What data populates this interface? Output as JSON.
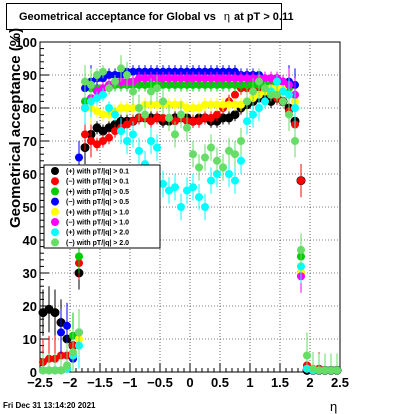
{
  "title": {
    "prefix": "Geometrical acceptance for Global vs",
    "eta": "η",
    "suffix": "at pT > 0.11"
  },
  "timestamp": "Fri Dec 31 13:14:20 2021",
  "chart_data": {
    "type": "scatter",
    "xlabel": "η",
    "ylabel": "Geometrical acceptance (%)",
    "xlim": [
      -2.5,
      2.5
    ],
    "ylim": [
      0,
      100
    ],
    "xticks": [
      "−2.5",
      "−2",
      "−1.5",
      "−1",
      "−0.5",
      "0",
      "0.5",
      "1",
      "1.5",
      "2",
      "2.5"
    ],
    "yticks": [
      "0",
      "10",
      "20",
      "30",
      "40",
      "50",
      "60",
      "70",
      "80",
      "90",
      "100"
    ],
    "grid": true,
    "legend_position": "left-middle",
    "series": [
      {
        "name": "(+) with pT/|q| > 0.1",
        "color": "#000000",
        "x": [
          -2.45,
          -2.35,
          -2.25,
          -2.15,
          -2.05,
          -1.95,
          -1.85,
          -1.75,
          -1.65,
          -1.55,
          -1.45,
          -1.35,
          -1.25,
          -1.15,
          -1.05,
          -0.95,
          -0.85,
          -0.75,
          -0.65,
          -0.55,
          -0.45,
          -0.35,
          -0.25,
          -0.15,
          -0.05,
          0.05,
          0.15,
          0.25,
          0.35,
          0.45,
          0.55,
          0.65,
          0.75,
          0.85,
          0.95,
          1.05,
          1.15,
          1.25,
          1.35,
          1.45,
          1.55,
          1.65,
          1.75,
          1.85,
          1.95,
          2.05,
          2.15,
          2.25,
          2.35,
          2.45
        ],
        "y": [
          18,
          19,
          18,
          15,
          10,
          8,
          30,
          68,
          72,
          74,
          73,
          74,
          75,
          76,
          76,
          76,
          77,
          77,
          77,
          77,
          76,
          76,
          77,
          77,
          77,
          76,
          77,
          77,
          76,
          76,
          77,
          77,
          78,
          80,
          81,
          82,
          83,
          83,
          82,
          83,
          82,
          80,
          76,
          58,
          0.5,
          0.5,
          0.5,
          0.5,
          0.5,
          0.5
        ]
      },
      {
        "name": "(−) with pT/|q| > 0.1",
        "color": "#ff0000",
        "x": [
          -2.45,
          -2.35,
          -2.25,
          -2.15,
          -2.05,
          -1.95,
          -1.85,
          -1.75,
          -1.65,
          -1.55,
          -1.45,
          -1.35,
          -1.25,
          -1.15,
          -1.05,
          -0.95,
          -0.85,
          -0.75,
          -0.65,
          -0.55,
          -0.45,
          -0.35,
          -0.25,
          -0.15,
          -0.05,
          0.05,
          0.15,
          0.25,
          0.35,
          0.45,
          0.55,
          0.65,
          0.75,
          0.85,
          0.95,
          1.05,
          1.15,
          1.25,
          1.35,
          1.45,
          1.55,
          1.65,
          1.75,
          1.85,
          1.95,
          2.05,
          2.15,
          2.25,
          2.35,
          2.45
        ],
        "y": [
          3,
          4,
          4,
          5,
          5,
          8,
          33,
          72,
          70,
          69,
          70,
          71,
          73,
          74,
          75,
          76,
          77,
          77,
          76,
          77,
          77,
          77,
          76,
          77,
          76,
          76,
          76,
          77,
          77,
          78,
          80,
          82,
          84,
          86,
          86,
          87,
          86,
          85,
          84,
          83,
          82,
          79,
          75,
          58,
          2,
          1,
          1,
          0.5,
          0.5,
          0.5
        ]
      },
      {
        "name": "(+) with pT/|q| > 0.5",
        "color": "#00cc00",
        "x": [
          -2.45,
          -2.35,
          -2.25,
          -2.15,
          -2.05,
          -1.95,
          -1.85,
          -1.75,
          -1.65,
          -1.55,
          -1.45,
          -1.35,
          -1.25,
          -1.15,
          -1.05,
          -0.95,
          -0.85,
          -0.75,
          -0.65,
          -0.55,
          -0.45,
          -0.35,
          -0.25,
          -0.15,
          -0.05,
          0.05,
          0.15,
          0.25,
          0.35,
          0.45,
          0.55,
          0.65,
          0.75,
          0.85,
          0.95,
          1.05,
          1.15,
          1.25,
          1.35,
          1.45,
          1.55,
          1.65,
          1.75,
          1.85,
          1.95,
          2.05,
          2.15,
          2.25,
          2.35,
          2.45
        ],
        "y": [
          0.5,
          0.5,
          0.5,
          0.5,
          1,
          11,
          35,
          82,
          86,
          86,
          86,
          87,
          87,
          87,
          87,
          87,
          87,
          87,
          87,
          87,
          87,
          87,
          87,
          87,
          87,
          87,
          87,
          87,
          87,
          87,
          87,
          87,
          87,
          87,
          87,
          87,
          87,
          87,
          87,
          86,
          86,
          86,
          84,
          35,
          1,
          0.5,
          0.5,
          0.5,
          0.5,
          0.5
        ]
      },
      {
        "name": "(−) with pT/|q| > 0.5",
        "color": "#0000ff",
        "x": [
          -2.45,
          -2.35,
          -2.25,
          -2.15,
          -2.05,
          -1.95,
          -1.85,
          -1.75,
          -1.65,
          -1.55,
          -1.45,
          -1.35,
          -1.25,
          -1.15,
          -1.05,
          -0.95,
          -0.85,
          -0.75,
          -0.65,
          -0.55,
          -0.45,
          -0.35,
          -0.25,
          -0.15,
          -0.05,
          0.05,
          0.15,
          0.25,
          0.35,
          0.45,
          0.55,
          0.65,
          0.75,
          0.85,
          0.95,
          1.05,
          1.15,
          1.25,
          1.35,
          1.45,
          1.55,
          1.65,
          1.75,
          1.85,
          1.95,
          2.05,
          2.15,
          2.25,
          2.35,
          2.45
        ],
        "y": [
          0.5,
          0.5,
          0.5,
          12,
          14,
          4,
          65,
          86,
          88,
          89,
          89,
          90,
          90,
          90,
          91,
          91,
          91,
          91,
          91,
          91,
          91,
          91,
          91,
          91,
          91,
          91,
          91,
          91,
          91,
          91,
          91,
          91,
          91,
          90,
          90,
          90,
          90,
          89,
          89,
          89,
          88,
          88,
          87,
          30,
          1,
          0.5,
          0.5,
          0.5,
          0.5,
          0.5
        ]
      },
      {
        "name": "(+) with pT/|q| > 1.0",
        "color": "#ffff00",
        "x": [
          -2.45,
          -2.35,
          -2.25,
          -2.15,
          -2.05,
          -1.95,
          -1.85,
          -1.75,
          -1.65,
          -1.55,
          -1.45,
          -1.35,
          -1.25,
          -1.15,
          -1.05,
          -0.95,
          -0.85,
          -0.75,
          -0.65,
          -0.55,
          -0.45,
          -0.35,
          -0.25,
          -0.15,
          -0.05,
          0.05,
          0.15,
          0.25,
          0.35,
          0.45,
          0.55,
          0.65,
          0.75,
          0.85,
          0.95,
          1.05,
          1.15,
          1.25,
          1.35,
          1.45,
          1.55,
          1.65,
          1.75,
          1.85,
          1.95,
          2.05,
          2.15,
          2.25,
          2.35,
          2.45
        ],
        "y": [
          0.5,
          0.5,
          0.5,
          0.5,
          1,
          5,
          10,
          80,
          80,
          79,
          78,
          78,
          79,
          80,
          80,
          80,
          80,
          81,
          81,
          81,
          81,
          81,
          81,
          81,
          80,
          80,
          80,
          81,
          81,
          81,
          81,
          81,
          81,
          81,
          82,
          83,
          84,
          85,
          86,
          86,
          86,
          84,
          82,
          30,
          1,
          0.5,
          0.5,
          0.5,
          0.5,
          0.5
        ]
      },
      {
        "name": "(−) with pT/|q| > 1.0",
        "color": "#ff00ff",
        "x": [
          -2.45,
          -2.35,
          -2.25,
          -2.15,
          -2.05,
          -1.95,
          -1.85,
          -1.75,
          -1.65,
          -1.55,
          -1.45,
          -1.35,
          -1.25,
          -1.15,
          -1.05,
          -0.95,
          -0.85,
          -0.75,
          -0.65,
          -0.55,
          -0.45,
          -0.35,
          -0.25,
          -0.15,
          -0.05,
          0.05,
          0.15,
          0.25,
          0.35,
          0.45,
          0.55,
          0.65,
          0.75,
          0.85,
          0.95,
          1.05,
          1.15,
          1.25,
          1.35,
          1.45,
          1.55,
          1.65,
          1.75,
          1.85,
          1.95,
          2.05,
          2.15,
          2.25,
          2.35,
          2.45
        ],
        "y": [
          0.5,
          0.5,
          0.5,
          0.5,
          1,
          5,
          12,
          80,
          83,
          85,
          86,
          87,
          88,
          88,
          88,
          88,
          89,
          89,
          89,
          89,
          89,
          89,
          89,
          89,
          89,
          89,
          89,
          89,
          89,
          89,
          89,
          89,
          89,
          89,
          89,
          89,
          89,
          89,
          89,
          89,
          88,
          87,
          84,
          29,
          1,
          0.5,
          0.5,
          0.5,
          0.5,
          0.5
        ]
      },
      {
        "name": "(+) with pT/|q| > 2.0",
        "color": "#00ffff",
        "x": [
          -2.45,
          -2.35,
          -2.25,
          -2.15,
          -2.05,
          -1.95,
          -1.85,
          -1.75,
          -1.65,
          -1.55,
          -1.45,
          -1.35,
          -1.25,
          -1.15,
          -1.05,
          -0.95,
          -0.85,
          -0.75,
          -0.65,
          -0.55,
          -0.45,
          -0.35,
          -0.25,
          -0.15,
          -0.05,
          0.05,
          0.15,
          0.25,
          0.35,
          0.45,
          0.55,
          0.65,
          0.75,
          0.85,
          0.95,
          1.05,
          1.15,
          1.25,
          1.35,
          1.45,
          1.55,
          1.65,
          1.75,
          1.85,
          1.95,
          2.05,
          2.15,
          2.25,
          2.35,
          2.45
        ],
        "y": [
          0.5,
          0.5,
          0.5,
          0.5,
          1,
          5,
          8,
          80,
          82,
          83,
          84,
          80,
          78,
          73,
          70,
          72,
          67,
          63,
          70,
          68,
          57,
          55,
          56,
          50,
          55,
          56,
          53,
          50,
          58,
          60,
          62,
          60,
          58,
          64,
          76,
          78,
          80,
          82,
          85,
          88,
          85,
          84,
          80,
          32,
          1,
          0.5,
          0.5,
          0.5,
          0.5,
          0.5
        ]
      },
      {
        "name": "(−) with pT/|q| > 2.0",
        "color": "#66dd66",
        "x": [
          -2.45,
          -2.35,
          -2.25,
          -2.15,
          -2.05,
          -1.95,
          -1.85,
          -1.75,
          -1.65,
          -1.55,
          -1.45,
          -1.35,
          -1.25,
          -1.15,
          -1.05,
          -0.95,
          -0.85,
          -0.75,
          -0.65,
          -0.55,
          -0.45,
          -0.35,
          -0.25,
          -0.15,
          -0.05,
          0.05,
          0.15,
          0.25,
          0.35,
          0.45,
          0.55,
          0.65,
          0.75,
          0.85,
          0.95,
          1.05,
          1.15,
          1.25,
          1.35,
          1.45,
          1.55,
          1.65,
          1.75,
          1.85,
          1.95,
          2.05,
          2.15,
          2.25,
          2.35,
          2.45
        ],
        "y": [
          0.5,
          0.5,
          0.5,
          0.5,
          2,
          6,
          12,
          88,
          87,
          90,
          91,
          86,
          88,
          92,
          90,
          85,
          80,
          78,
          85,
          86,
          82,
          77,
          72,
          78,
          74,
          66,
          62,
          65,
          68,
          64,
          62,
          67,
          66,
          70,
          82,
          85,
          88,
          86,
          84,
          84,
          82,
          78,
          70,
          37,
          5,
          1,
          0.5,
          0.5,
          0.5,
          0.5
        ]
      }
    ]
  }
}
